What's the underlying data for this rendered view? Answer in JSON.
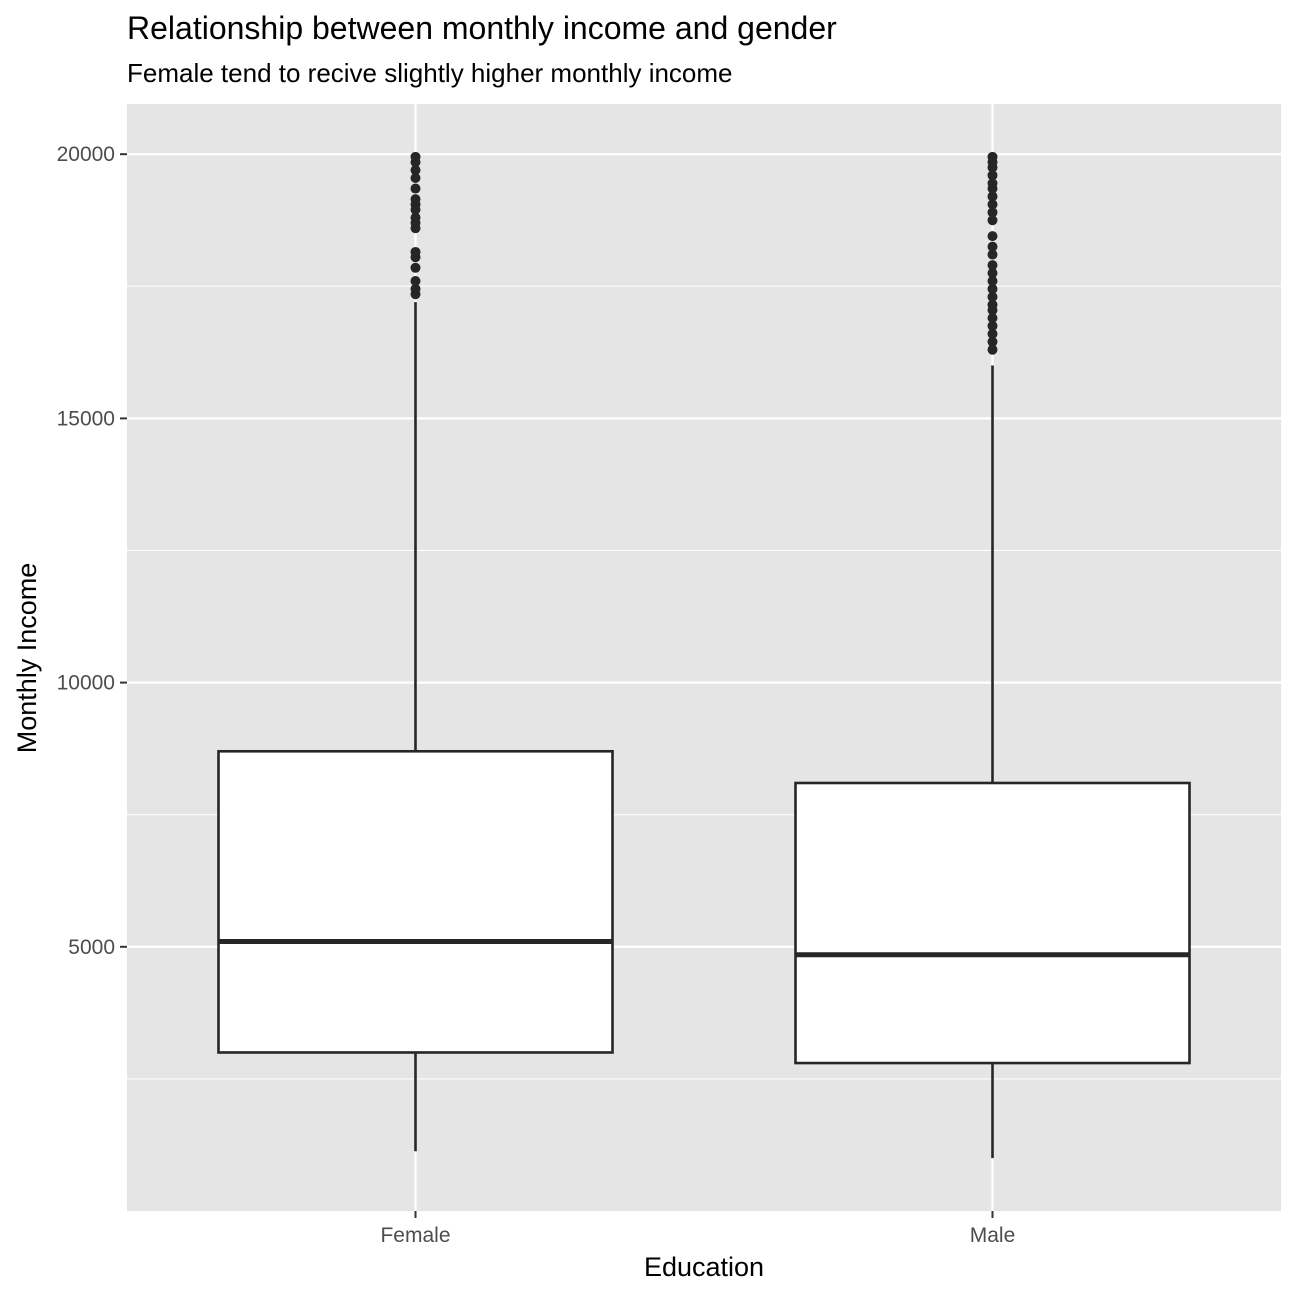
{
  "chart_data": {
    "type": "boxplot",
    "title": "Relationship between monthly income and gender",
    "subtitle": "Female tend to recive slightly higher monthly income",
    "xlabel": "Education",
    "ylabel": "Monthly Income",
    "categories": [
      "Female",
      "Male"
    ],
    "y_ticks": [
      5000,
      10000,
      15000,
      20000
    ],
    "y_tick_labels": [
      "5000",
      "10000",
      "15000",
      "20000"
    ],
    "ylim": [
      0,
      20950
    ],
    "grid": true,
    "boxes": [
      {
        "category": "Female",
        "whisker_low": 1130,
        "q1": 3000,
        "median": 5100,
        "q3": 8700,
        "whisker_high": 17200,
        "outliers": [
          17350,
          17450,
          17600,
          17850,
          18050,
          18150,
          18600,
          18700,
          18800,
          18950,
          19050,
          19150,
          19350,
          19550,
          19700,
          19850,
          19950
        ]
      },
      {
        "category": "Male",
        "whisker_low": 1000,
        "q1": 2800,
        "median": 4850,
        "q3": 8100,
        "whisker_high": 16000,
        "outliers": [
          16300,
          16450,
          16600,
          16750,
          16900,
          17050,
          17150,
          17300,
          17450,
          17600,
          17750,
          17900,
          18100,
          18250,
          18450,
          18750,
          18900,
          19050,
          19200,
          19350,
          19450,
          19600,
          19750,
          19850,
          19950
        ]
      }
    ],
    "colors": {
      "panel_background": "#e5e5e5",
      "grid": "#ffffff",
      "box_fill": "#ffffff",
      "stroke": "#262626"
    }
  }
}
